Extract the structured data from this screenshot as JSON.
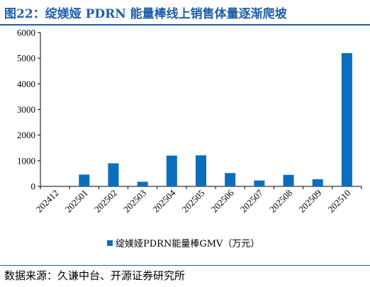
{
  "title": "图22：绽媄娅 PDRN 能量棒线上销售体量逐渐爬坡",
  "source": "数据来源：久谦中台、开源证券研究所",
  "chart_data": {
    "type": "bar",
    "title": "",
    "xlabel": "",
    "ylabel": "",
    "categories": [
      "202412",
      "202501",
      "202502",
      "202503",
      "202504",
      "202505",
      "202506",
      "202507",
      "202508",
      "202509",
      "202510"
    ],
    "series": [
      {
        "name": "绽媄娅PDRN能量棒GMV（万元）",
        "values": [
          0,
          460,
          900,
          180,
          1200,
          1210,
          520,
          230,
          450,
          280,
          5200
        ],
        "color": "#0a6ebd"
      }
    ],
    "ylim": [
      0,
      6000
    ],
    "yticks": [
      "0",
      "1000",
      "2000",
      "3000",
      "4000",
      "5000",
      "6000"
    ],
    "legend_position": "bottom-center",
    "grid": false
  }
}
